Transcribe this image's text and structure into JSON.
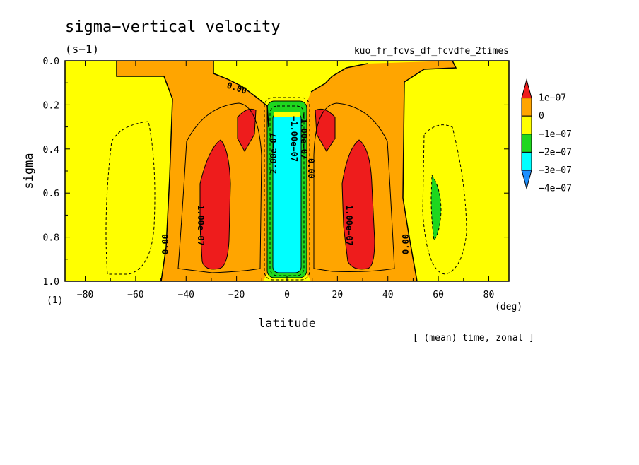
{
  "chart_data": {
    "type": "contour",
    "title": "sigma−vertical velocity",
    "units": "(s−1)",
    "experiment": "kuo_fr_fcvs_df_fcvdfe_2times",
    "xlabel": "latitude",
    "xunit": "(deg)",
    "ylabel": "sigma",
    "yunit": "(1)",
    "footer": "[ (mean) time, zonal ]",
    "xlim": [
      -88,
      88
    ],
    "ylim": [
      0.0,
      1.0
    ],
    "y_inverted": true,
    "x_ticks": [
      -80,
      -60,
      -40,
      -20,
      0,
      20,
      40,
      60,
      80
    ],
    "x_tick_labels": [
      "−80",
      "−60",
      "−40",
      "−20",
      "0",
      "20",
      "40",
      "60",
      "80"
    ],
    "y_ticks": [
      0.0,
      0.2,
      0.4,
      0.6,
      0.8,
      1.0
    ],
    "y_tick_labels": [
      "0.0",
      "0.2",
      "0.4",
      "0.6",
      "0.8",
      "1.0"
    ],
    "levels": [
      {
        "label": "1e−07",
        "value": 1e-07,
        "color": "#ee1c1c"
      },
      {
        "label": "0",
        "value": 0,
        "color": "#ffa500"
      },
      {
        "label": "−1e−07",
        "value": -1e-07,
        "color": "#ffff00"
      },
      {
        "label": "−2e−07",
        "value": -2e-07,
        "color": "#1ed71e"
      },
      {
        "label": "−3e−07",
        "value": -3e-07,
        "color": "#00ffff"
      },
      {
        "label": "−4e−07",
        "value": -4e-07,
        "color": "#1e90ff"
      }
    ],
    "colorbar_colors": [
      "#ee1c1c",
      "#ffa500",
      "#ffff00",
      "#1ed71e",
      "#00ffff",
      "#1e90ff"
    ],
    "contour_labels": [
      "0.00",
      "0.00",
      "0.00",
      "0.00",
      "1.00e−07",
      "1.00e−07",
      "2.00e−07",
      "−1.00e−07",
      "−1.00e−07"
    ],
    "regions": [
      {
        "name": "equatorial ascent",
        "lat_range": [
          -8,
          8
        ],
        "sigma_range": [
          0.18,
          0.98
        ],
        "value_class": "−3e−07"
      },
      {
        "name": "SH subtropical descent core",
        "lat_range": [
          -36,
          -22
        ],
        "sigma_range": [
          0.36,
          0.94
        ],
        "value_class": "1e−07"
      },
      {
        "name": "NH subtropical descent core",
        "lat_range": [
          22,
          36
        ],
        "sigma_range": [
          0.36,
          0.94
        ],
        "value_class": "1e−07"
      },
      {
        "name": "NH midlatitude ascent",
        "lat_range": [
          57,
          62
        ],
        "sigma_range": [
          0.52,
          0.81
        ],
        "value_class": "−2e−07"
      }
    ]
  }
}
